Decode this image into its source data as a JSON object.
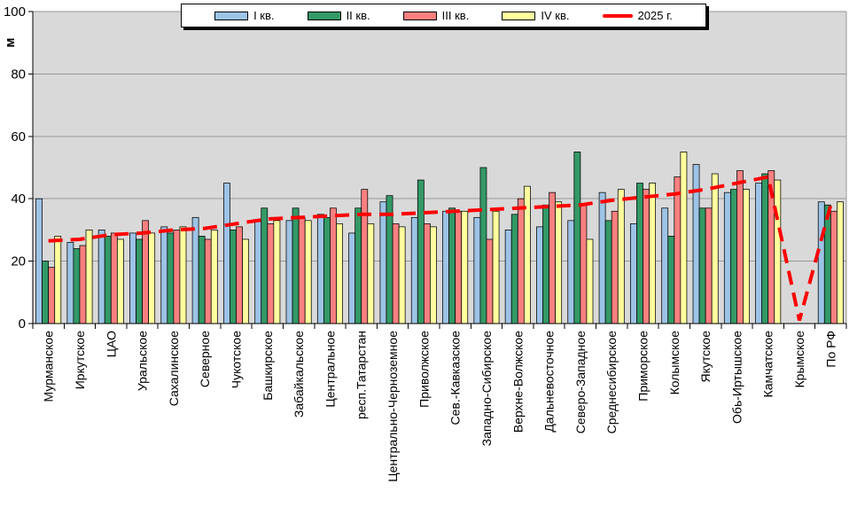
{
  "chart_data": {
    "type": "bar",
    "title": "",
    "ylabel": "м",
    "ylim": [
      0,
      100
    ],
    "yticks": [
      0,
      20,
      40,
      60,
      80,
      100
    ],
    "grid": true,
    "plot_bg": "#d9d9d9",
    "grid_color": "#999999",
    "legend_position": "top-center",
    "categories": [
      "Мурманское",
      "Иркутское",
      "ЦАО",
      "Уральское",
      "Сахалинское",
      "Северное",
      "Чукотское",
      "Башкирское",
      "Забайкальское",
      "Центральное",
      "респ.Татарстан",
      "Центрально-Черноземное",
      "Приволжское",
      "Сев.-Кавказское",
      "Западно-Сибирское",
      "Верхне-Волжское",
      "Дальневосточное",
      "Северо-Западное",
      "Среднесибирское",
      "Приморское",
      "Колымское",
      "Якутское",
      "Обь-Иртышское",
      "Камчатское",
      "Крымское",
      "По РФ"
    ],
    "series": [
      {
        "name": "I кв.",
        "color": "#9dc3e6",
        "values": [
          40,
          26,
          30,
          29,
          31,
          34,
          45,
          33,
          33,
          35,
          29,
          39,
          34,
          36,
          34,
          30,
          31,
          33,
          42,
          32,
          37,
          51,
          42,
          45,
          null,
          39
        ]
      },
      {
        "name": "II кв.",
        "color": "#339966",
        "values": [
          20,
          24,
          28,
          27,
          29,
          28,
          30,
          37,
          37,
          34,
          37,
          41,
          46,
          37,
          50,
          35,
          38,
          55,
          33,
          45,
          28,
          37,
          43,
          48,
          null,
          38
        ]
      },
      {
        "name": "III кв.",
        "color": "#fa8080",
        "values": [
          18,
          25,
          29,
          33,
          30,
          27,
          31,
          32,
          34,
          37,
          43,
          32,
          32,
          36,
          27,
          40,
          42,
          38,
          36,
          43,
          47,
          37,
          49,
          49,
          null,
          36
        ]
      },
      {
        "name": "IV кв.",
        "color": "#ffff9e",
        "values": [
          28,
          30,
          27,
          29,
          31,
          30,
          27,
          33,
          33,
          32,
          32,
          31,
          31,
          36,
          36,
          44,
          39,
          27,
          43,
          45,
          55,
          48,
          43,
          46,
          null,
          39
        ]
      }
    ],
    "line_series": {
      "name": "2025 г.",
      "color": "#ff0000",
      "dashed": true,
      "values": [
        26.5,
        27,
        28.5,
        29,
        30,
        30.5,
        32,
        33.5,
        34,
        34.5,
        35,
        35,
        35.5,
        36,
        36.5,
        37,
        37.5,
        38,
        39.5,
        40.5,
        41.5,
        43,
        45,
        47,
        1,
        38
      ]
    }
  }
}
